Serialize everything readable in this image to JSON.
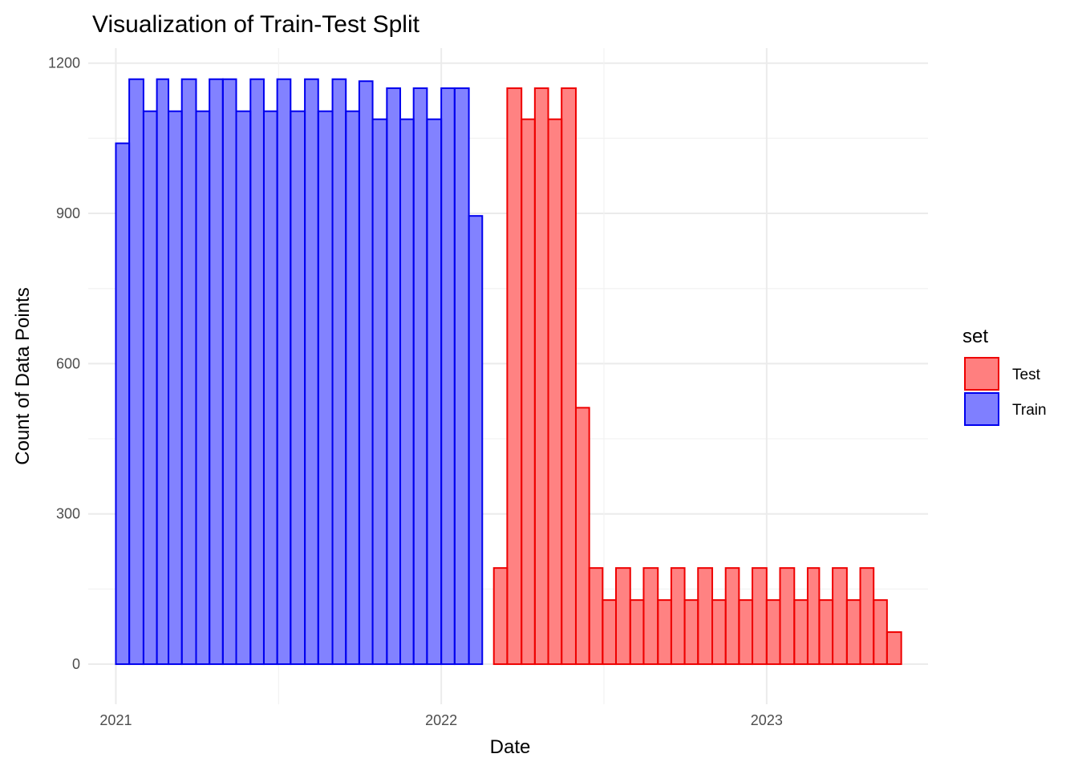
{
  "chart_data": {
    "type": "bar",
    "subtype": "stacked-histogram",
    "title": "Visualization of Train-Test Split",
    "xlabel": "Date",
    "ylabel": "Count of Data Points",
    "xlim": [
      "2020-12-01",
      "2023-07-01"
    ],
    "ylim": [
      -80,
      1230
    ],
    "x_ticks": [
      {
        "date": "2021-01-01",
        "label": "2021"
      },
      {
        "date": "2022-01-01",
        "label": "2022"
      },
      {
        "date": "2023-01-01",
        "label": "2023"
      }
    ],
    "y_ticks": [
      0,
      300,
      600,
      900,
      1200
    ],
    "grid": true,
    "legend_position": "right",
    "legend_title": "set",
    "series": [
      {
        "name": "Train",
        "fill": "#7f7fff",
        "stroke": "#0000ee",
        "bins_start": [
          "2021-01-01",
          "2021-01-16",
          "2021-02-01",
          "2021-02-16",
          "2021-03-01",
          "2021-03-16",
          "2021-04-01",
          "2021-04-16",
          "2021-05-01",
          "2021-05-16",
          "2021-06-01",
          "2021-06-16",
          "2021-07-01",
          "2021-07-16",
          "2021-08-01",
          "2021-08-16",
          "2021-09-01",
          "2021-09-16",
          "2021-10-01",
          "2021-10-16",
          "2021-11-01",
          "2021-11-16",
          "2021-12-01",
          "2021-12-16",
          "2022-01-01",
          "2022-01-16",
          "2022-02-01",
          "2022-02-16",
          "2022-03-01",
          "2022-03-16"
        ],
        "bins_end": [
          "2021-01-16",
          "2021-02-01",
          "2021-02-16",
          "2021-03-01",
          "2021-03-16",
          "2021-04-01",
          "2021-04-16",
          "2021-05-01",
          "2021-05-16",
          "2021-06-01",
          "2021-06-16",
          "2021-07-01",
          "2021-07-16",
          "2021-08-01",
          "2021-08-16",
          "2021-09-01",
          "2021-09-16",
          "2021-10-01",
          "2021-10-16",
          "2021-11-01",
          "2021-11-16",
          "2021-12-01",
          "2021-12-16",
          "2022-01-01",
          "2022-01-16",
          "2022-02-01",
          "2022-02-16",
          "2022-03-01",
          "2022-03-16",
          "2022-04-01"
        ],
        "values": [
          1040,
          1168,
          1104,
          1168,
          1104,
          1168,
          1104,
          1168,
          1168,
          1104,
          1168,
          1104,
          1168,
          1104,
          1168,
          1104,
          1168,
          1104,
          1164,
          1088,
          1150,
          1088,
          1150,
          1088,
          1150,
          1150,
          895,
          0,
          0,
          0
        ]
      },
      {
        "name": "Test",
        "fill": "#ff7f7f",
        "stroke": "#ee0000",
        "bins_start": [
          "2022-03-01",
          "2022-03-16",
          "2022-04-01",
          "2022-04-16",
          "2022-05-01",
          "2022-05-16",
          "2022-06-01",
          "2022-06-16",
          "2022-07-01",
          "2022-07-16",
          "2022-08-01",
          "2022-08-16",
          "2022-09-01",
          "2022-09-16",
          "2022-10-01",
          "2022-10-16",
          "2022-11-01",
          "2022-11-16",
          "2022-12-01",
          "2022-12-16",
          "2023-01-01",
          "2023-01-16",
          "2023-02-01",
          "2023-02-16",
          "2023-03-01",
          "2023-03-16",
          "2023-04-01",
          "2023-04-16",
          "2023-05-01",
          "2023-05-16"
        ],
        "bins_end": [
          "2022-03-16",
          "2022-04-01",
          "2022-04-16",
          "2022-05-01",
          "2022-05-16",
          "2022-06-01",
          "2022-06-16",
          "2022-07-01",
          "2022-07-16",
          "2022-08-01",
          "2022-08-16",
          "2022-09-01",
          "2022-09-16",
          "2022-10-01",
          "2022-10-16",
          "2022-11-01",
          "2022-11-16",
          "2022-12-01",
          "2022-12-16",
          "2023-01-01",
          "2023-01-16",
          "2023-02-01",
          "2023-02-16",
          "2023-03-01",
          "2023-03-16",
          "2023-04-01",
          "2023-04-16",
          "2023-05-01",
          "2023-05-16",
          "2023-06-01"
        ],
        "values": [
          192,
          1150,
          1088,
          1150,
          1088,
          1150,
          512,
          192,
          128,
          192,
          128,
          192,
          128,
          192,
          128,
          192,
          128,
          192,
          128,
          192,
          128,
          192,
          128,
          192,
          128,
          192,
          128,
          192,
          128,
          64
        ]
      }
    ]
  }
}
